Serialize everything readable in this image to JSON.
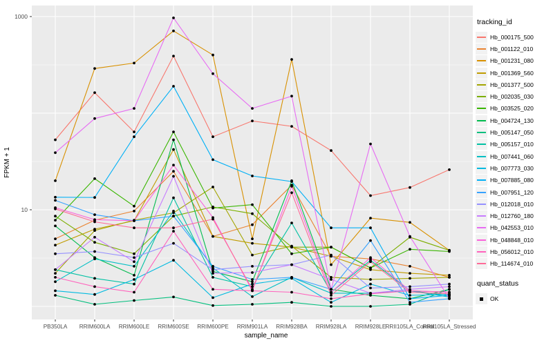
{
  "chart_data": {
    "type": "line",
    "title": "",
    "xlabel": "sample_name",
    "ylabel": "FPKM + 1",
    "y_scale": "log10",
    "ylim": [
      1,
      1000
    ],
    "grid": true,
    "legend_position": "right",
    "y_ticks": [
      {
        "value": 1000,
        "label": "1000"
      },
      {
        "value": 10,
        "label": "10"
      }
    ],
    "y_gridlines_major": [
      1,
      10,
      100,
      1000
    ],
    "y_gridlines_minor": [
      3.162,
      31.62,
      316.2
    ],
    "categories": [
      "PB350LA",
      "RRIM600LA",
      "RRIM600LE",
      "RRIM600SE",
      "RRIM600PE",
      "RRIM901LA",
      "RRIM928BA",
      "RRIM928LA",
      "RRIM928LE",
      "RRII105LA_Control",
      "RRII105LA_Stressed"
    ],
    "point_color": "#000000",
    "series": [
      {
        "name": "Hb_000175_500",
        "color": "#F8766D",
        "values": [
          53,
          163,
          64,
          390,
          57,
          83,
          73,
          41,
          14,
          17,
          26
        ]
      },
      {
        "name": "Hb_001122_010",
        "color": "#EA8331",
        "values": [
          5.0,
          7.8,
          9.7,
          25,
          5.3,
          7.0,
          18,
          3.3,
          3.1,
          2.6,
          2.0
        ]
      },
      {
        "name": "Hb_001231_080",
        "color": "#D89000",
        "values": [
          20,
          290,
          330,
          710,
          400,
          5.0,
          360,
          2.7,
          8.2,
          7.4,
          3.8
        ]
      },
      {
        "name": "Hb_001369_560",
        "color": "#C09B00",
        "values": [
          4.3,
          6.3,
          7.7,
          42,
          5.3,
          4.5,
          4.1,
          3.3,
          2.4,
          2.2,
          2.1
        ]
      },
      {
        "name": "Hb_001377_500",
        "color": "#A3A500",
        "values": [
          2.2,
          6.1,
          7.8,
          9.3,
          17.2,
          3.4,
          4.2,
          2.0,
          1.9,
          1.95,
          2.0
        ]
      },
      {
        "name": "Hb_002035_030",
        "color": "#7CAE00",
        "values": [
          8.6,
          4.6,
          3.5,
          8.6,
          10.7,
          9.1,
          4.1,
          4.1,
          2.5,
          5.2,
          3.8
        ]
      },
      {
        "name": "Hb_003525_020",
        "color": "#39B600",
        "values": [
          7.8,
          21,
          10.9,
          64,
          10.4,
          11.3,
          3.5,
          4.1,
          2.5,
          3.9,
          3.7
        ]
      },
      {
        "name": "Hb_004724_130",
        "color": "#00BB4E",
        "values": [
          6.8,
          3.2,
          2.1,
          53,
          2.3,
          1.8,
          20,
          1.5,
          1.3,
          1.2,
          1.5
        ]
      },
      {
        "name": "Hb_005147_050",
        "color": "#00BF7D",
        "values": [
          1.3,
          1.05,
          1.15,
          1.25,
          1.02,
          1.05,
          1.1,
          1.0,
          1.0,
          1.05,
          1.5
        ]
      },
      {
        "name": "Hb_005157_010",
        "color": "#00C1A3",
        "values": [
          2.4,
          1.95,
          1.7,
          13.3,
          2.0,
          1.6,
          7.3,
          1.4,
          3.0,
          1.45,
          1.3
        ]
      },
      {
        "name": "Hb_007441_060",
        "color": "#00BFC4",
        "values": [
          1.8,
          3.1,
          2.6,
          9.7,
          2.5,
          1.26,
          2.0,
          1.37,
          1.37,
          1.45,
          1.25
        ]
      },
      {
        "name": "Hb_007773_030",
        "color": "#00BAE0",
        "values": [
          1.45,
          1.33,
          1.9,
          3.0,
          1.23,
          1.7,
          1.95,
          1.1,
          1.7,
          1.3,
          1.33
        ]
      },
      {
        "name": "Hb_007885_080",
        "color": "#00B0F6",
        "values": [
          13.5,
          13.4,
          57,
          190,
          33,
          22.4,
          19.6,
          6.5,
          6.5,
          1.2,
          1.3
        ]
      },
      {
        "name": "Hb_007951_120",
        "color": "#35A2FF",
        "values": [
          12.5,
          8.9,
          7.7,
          8.6,
          2.6,
          1.9,
          2.0,
          1.5,
          4.8,
          1.1,
          1.2
        ]
      },
      {
        "name": "Hb_012018_010",
        "color": "#9590FF",
        "values": [
          3.5,
          3.7,
          3.2,
          4.5,
          2.4,
          2.6,
          2.7,
          3.4,
          1.55,
          1.6,
          1.7
        ]
      },
      {
        "name": "Hb_012760_180",
        "color": "#C77CFF",
        "values": [
          2.4,
          5.2,
          2.9,
          22.2,
          2.2,
          2.24,
          2.7,
          1.9,
          1.37,
          1.5,
          1.6
        ]
      },
      {
        "name": "Hb_042553_010",
        "color": "#E76BF3",
        "values": [
          39,
          88,
          112,
          970,
          256,
          112,
          150,
          1.5,
          48,
          5.3,
          1.2
        ]
      },
      {
        "name": "Hb_048848_010",
        "color": "#FA62DB",
        "values": [
          10.5,
          7.9,
          7.7,
          29,
          8.3,
          1.45,
          17.5,
          1.4,
          3.2,
          1.45,
          1.4
        ]
      },
      {
        "name": "Hb_056012_010",
        "color": "#FF62BC",
        "values": [
          2.0,
          1.6,
          1.4,
          6.0,
          1.5,
          1.45,
          1.4,
          1.2,
          1.35,
          1.45,
          1.4
        ]
      },
      {
        "name": "Hb_114674_010",
        "color": "#FF6A98",
        "values": [
          10.2,
          7.5,
          6.5,
          6.5,
          8.0,
          1.5,
          15,
          1.3,
          2.9,
          1.4,
          1.35
        ]
      }
    ]
  },
  "legend": {
    "tracking_title": "tracking_id",
    "quant_title": "quant_status",
    "quant_items": [
      {
        "label": "OK"
      }
    ]
  },
  "colors": {
    "panel_background": "#EBEBEB",
    "gridline": "#FFFFFF",
    "axis_text": "#4D4D4D",
    "axis_title": "#000000",
    "tick_mark": "#333333",
    "legend_key_background": "#F2F2F2"
  }
}
